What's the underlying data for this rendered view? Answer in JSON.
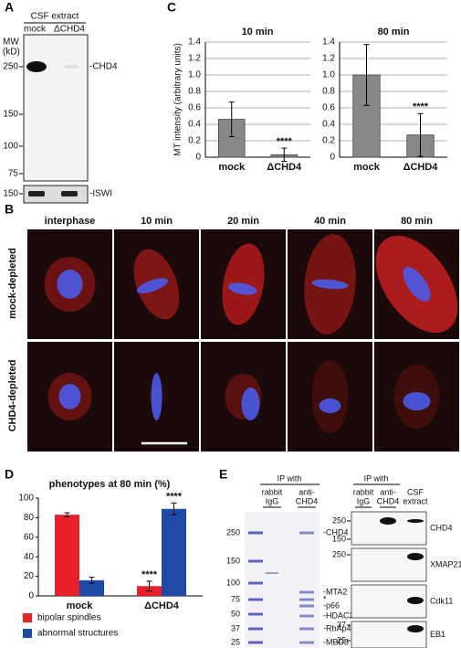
{
  "panels": {
    "A": {
      "letter": "A",
      "header": "CSF extract",
      "lanes": [
        "mock",
        "ΔCHD4"
      ],
      "mw_label": [
        "MW",
        "(kD)"
      ],
      "markers": [
        "250",
        "150",
        "100",
        "75"
      ],
      "band": "-CHD4",
      "lower_marker": "150",
      "lower_band": "-ISWI"
    },
    "B": {
      "letter": "B",
      "columns": [
        "interphase",
        "10 min",
        "20 min",
        "40 min",
        "80 min"
      ],
      "rows": [
        "mock-depleted",
        "CHD4-depleted"
      ]
    },
    "C": {
      "letter": "C"
    },
    "D": {
      "letter": "D"
    },
    "E": {
      "letter": "E",
      "gel": {
        "header": "IP with",
        "lanes": [
          [
            "rabbit",
            "IgG"
          ],
          [
            "anti-",
            "CHD4"
          ]
        ],
        "markers": [
          "250",
          "150",
          "100",
          "75",
          "50",
          "37",
          "25"
        ],
        "bands": [
          "-CHD4",
          "-MTA2",
          "*",
          "-p66",
          "-HDAC2",
          "-RbAp48",
          "-MBD3"
        ]
      },
      "blots": {
        "header": "IP with",
        "lanes": [
          [
            "rabbit",
            "IgG"
          ],
          [
            "anti-",
            "CHD4"
          ],
          [
            "CSF",
            "extract"
          ]
        ],
        "rows": [
          {
            "label": "CHD4",
            "markers": [
              "250",
              "150"
            ]
          },
          {
            "label": "XMAP215",
            "markers": [
              "250"
            ]
          },
          {
            "label": "Cdk11",
            "markers": []
          },
          {
            "label": "EB1",
            "markers": [
              "37",
              "25"
            ]
          }
        ]
      }
    }
  },
  "chart_data": [
    {
      "type": "bar",
      "title": "10 min",
      "ylabel": "MT intensity (arbitrary units)",
      "categories": [
        "mock",
        "ΔCHD4"
      ],
      "values": [
        0.46,
        0.03
      ],
      "errors": [
        0.21,
        0.08
      ],
      "significance": [
        null,
        "****"
      ],
      "color": "#888888",
      "ylim": [
        0,
        1.4
      ],
      "yticks": [
        0,
        0.2,
        0.4,
        0.6,
        0.8,
        {
          "value": 1,
          "label": "1.0"
        },
        1.2,
        1.4
      ],
      "grid": true
    },
    {
      "type": "bar",
      "title": "80 min",
      "categories": [
        "mock",
        "ΔCHD4"
      ],
      "values": [
        1.0,
        0.27
      ],
      "errors": [
        0.37,
        0.26
      ],
      "significance": [
        null,
        "****"
      ],
      "color": "#888888",
      "ylim": [
        0,
        1.4
      ],
      "yticks": [
        0,
        0.2,
        0.4,
        0.6,
        0.8,
        {
          "value": 1,
          "label": "1.0"
        },
        1.2,
        1.4
      ],
      "grid": true
    },
    {
      "type": "bar",
      "title": "phenotypes at 80 min (%)",
      "categories": [
        "mock",
        "ΔCHD4"
      ],
      "series": [
        {
          "name": "bipolar spindles",
          "color": "#e8202a",
          "values": [
            83,
            10
          ],
          "errors": [
            2,
            5
          ],
          "significance": [
            null,
            "****"
          ]
        },
        {
          "name": "abnormal structures",
          "color": "#1f4aa8",
          "values": [
            16,
            89
          ],
          "errors": [
            3,
            6
          ],
          "significance": [
            null,
            "****"
          ]
        }
      ],
      "ylim": [
        0,
        100
      ],
      "yticks": [
        0,
        20,
        40,
        60,
        80,
        100
      ],
      "grid": false,
      "legend": "bottom"
    }
  ]
}
